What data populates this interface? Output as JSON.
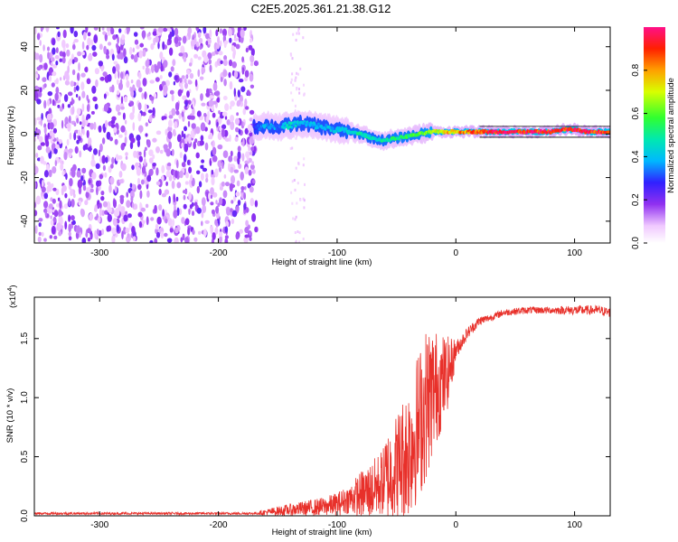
{
  "page": {
    "title": "C2E5.2025.361.21.38.G12"
  },
  "chart_data": [
    {
      "type": "heatmap",
      "title": "C2E5.2025.361.21.38.G12",
      "xlabel": "Height of straight line (km)",
      "ylabel": "Frequency (Hz)",
      "xlim": [
        -355,
        130
      ],
      "ylim": [
        -50,
        49
      ],
      "xticks": [
        -300,
        -200,
        -100,
        0,
        100
      ],
      "xtick_labels": [
        "-300",
        "-200",
        "-100",
        "0",
        "100"
      ],
      "yticks": [
        -40,
        -20,
        0,
        20,
        40
      ],
      "ytick_labels": [
        "-40",
        "-20",
        "0",
        "20",
        "40"
      ],
      "colorbar": {
        "label": "Normalized spectral amplitude",
        "range": [
          0,
          1
        ],
        "ticks": [
          0.0,
          0.2,
          0.4,
          0.6,
          0.8
        ],
        "tick_labels": [
          "0.0",
          "0.2",
          "0.4",
          "0.6",
          "0.8"
        ]
      },
      "noise_region_x": [
        -355,
        -168
      ],
      "signal_track": {
        "x": [
          -170,
          -160,
          -150,
          -140,
          -130,
          -120,
          -110,
          -100,
          -90,
          -80,
          -70,
          -60,
          -50,
          -40,
          -30,
          -20,
          -10,
          0,
          20,
          40,
          60,
          80,
          90,
          100,
          110,
          130
        ],
        "frequency": [
          3,
          4,
          3,
          4,
          5,
          4,
          3,
          2,
          1,
          0,
          -2,
          -3,
          -2,
          -1,
          0,
          1,
          1,
          1,
          1,
          1,
          1,
          1,
          2,
          2,
          1,
          1
        ],
        "amplitude": [
          0.3,
          0.4,
          0.35,
          0.45,
          0.4,
          0.4,
          0.4,
          0.4,
          0.45,
          0.5,
          0.45,
          0.5,
          0.55,
          0.55,
          0.6,
          0.7,
          0.75,
          0.8,
          0.9,
          0.95,
          0.95,
          0.95,
          0.9,
          0.95,
          0.95,
          0.9
        ]
      }
    },
    {
      "type": "line",
      "xlabel": "Height of straight line (km)",
      "ylabel": "SNR (10 * v/v)",
      "multiplier_label": "(x10",
      "multiplier_exponent": "4",
      "xlim": [
        -355,
        130
      ],
      "ylim": [
        0,
        1.85
      ],
      "xticks": [
        -300,
        -200,
        -100,
        0,
        100
      ],
      "xtick_labels": [
        "-300",
        "-200",
        "-100",
        "0",
        "100"
      ],
      "yticks": [
        0,
        0.5,
        1.0,
        1.5
      ],
      "ytick_labels": [
        "0.0",
        "0.5",
        "1.0",
        "1.5"
      ],
      "series": [
        {
          "name": "SNR",
          "color": "#e8302a",
          "x": [
            -355,
            -300,
            -250,
            -200,
            -170,
            -150,
            -130,
            -110,
            -100,
            -90,
            -80,
            -70,
            -60,
            -50,
            -40,
            -30,
            -25,
            -20,
            -15,
            -10,
            -5,
            0,
            10,
            20,
            30,
            40,
            60,
            80,
            100,
            120,
            130
          ],
          "y": [
            0.02,
            0.02,
            0.02,
            0.02,
            0.02,
            0.04,
            0.06,
            0.08,
            0.1,
            0.14,
            0.18,
            0.22,
            0.3,
            0.42,
            0.55,
            0.8,
            0.95,
            1.05,
            1.1,
            1.15,
            1.25,
            1.4,
            1.55,
            1.65,
            1.68,
            1.72,
            1.74,
            1.74,
            1.74,
            1.74,
            1.72
          ],
          "noise": [
            0.01,
            0.01,
            0.01,
            0.01,
            0.01,
            0.04,
            0.06,
            0.08,
            0.1,
            0.12,
            0.2,
            0.25,
            0.3,
            0.35,
            0.45,
            0.5,
            0.5,
            0.45,
            0.35,
            0.3,
            0.2,
            0.08,
            0.05,
            0.04,
            0.03,
            0.03,
            0.03,
            0.03,
            0.04,
            0.04,
            0.04
          ]
        }
      ]
    }
  ]
}
